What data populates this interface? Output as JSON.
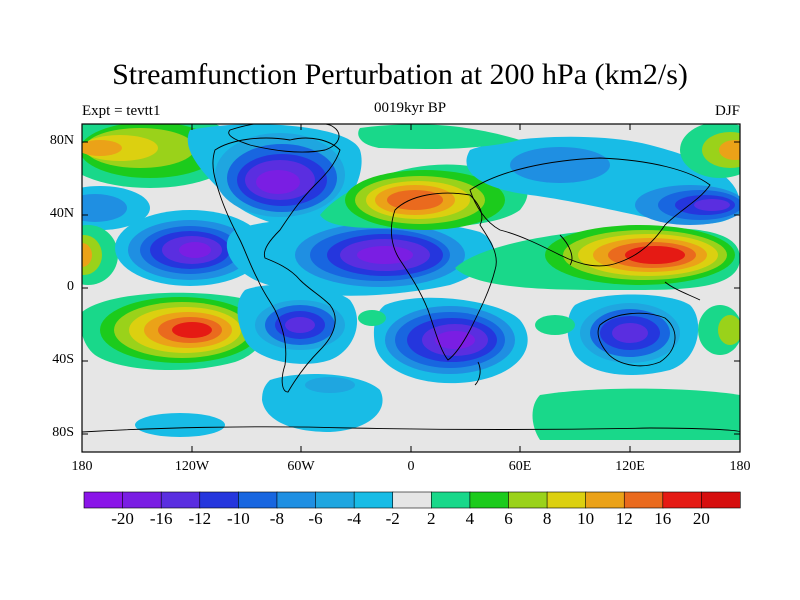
{
  "title": "Streamfunction Perturbation at 200 hPa (km2/s)",
  "subtitle_left": "Expt = tevtt1",
  "subtitle_center": "0019kyr BP",
  "subtitle_right": "DJF",
  "lat_labels": [
    "80N",
    "40N",
    "0",
    "40S",
    "80S"
  ],
  "lon_labels": [
    "180",
    "120W",
    "60W",
    "0",
    "60E",
    "120E",
    "180"
  ],
  "colorbar": {
    "labels": [
      "-20",
      "-16",
      "-12",
      "-10",
      "-8",
      "-6",
      "-4",
      "-2",
      "2",
      "4",
      "6",
      "8",
      "10",
      "12",
      "16",
      "20"
    ],
    "colors": [
      "#8a15e8",
      "#7a1ee3",
      "#5a2ee0",
      "#2536dd",
      "#1866e0",
      "#1f8fe2",
      "#1fa6e0",
      "#18bce6",
      "#e6e6e6",
      "#19d88a",
      "#1ccb1c",
      "#9ad21a",
      "#dcd010",
      "#eba218",
      "#ea6a1e",
      "#e51a14",
      "#d60e0e"
    ]
  },
  "colors": {
    "neutral": "#e6e6e6",
    "coast": "#000000"
  }
}
